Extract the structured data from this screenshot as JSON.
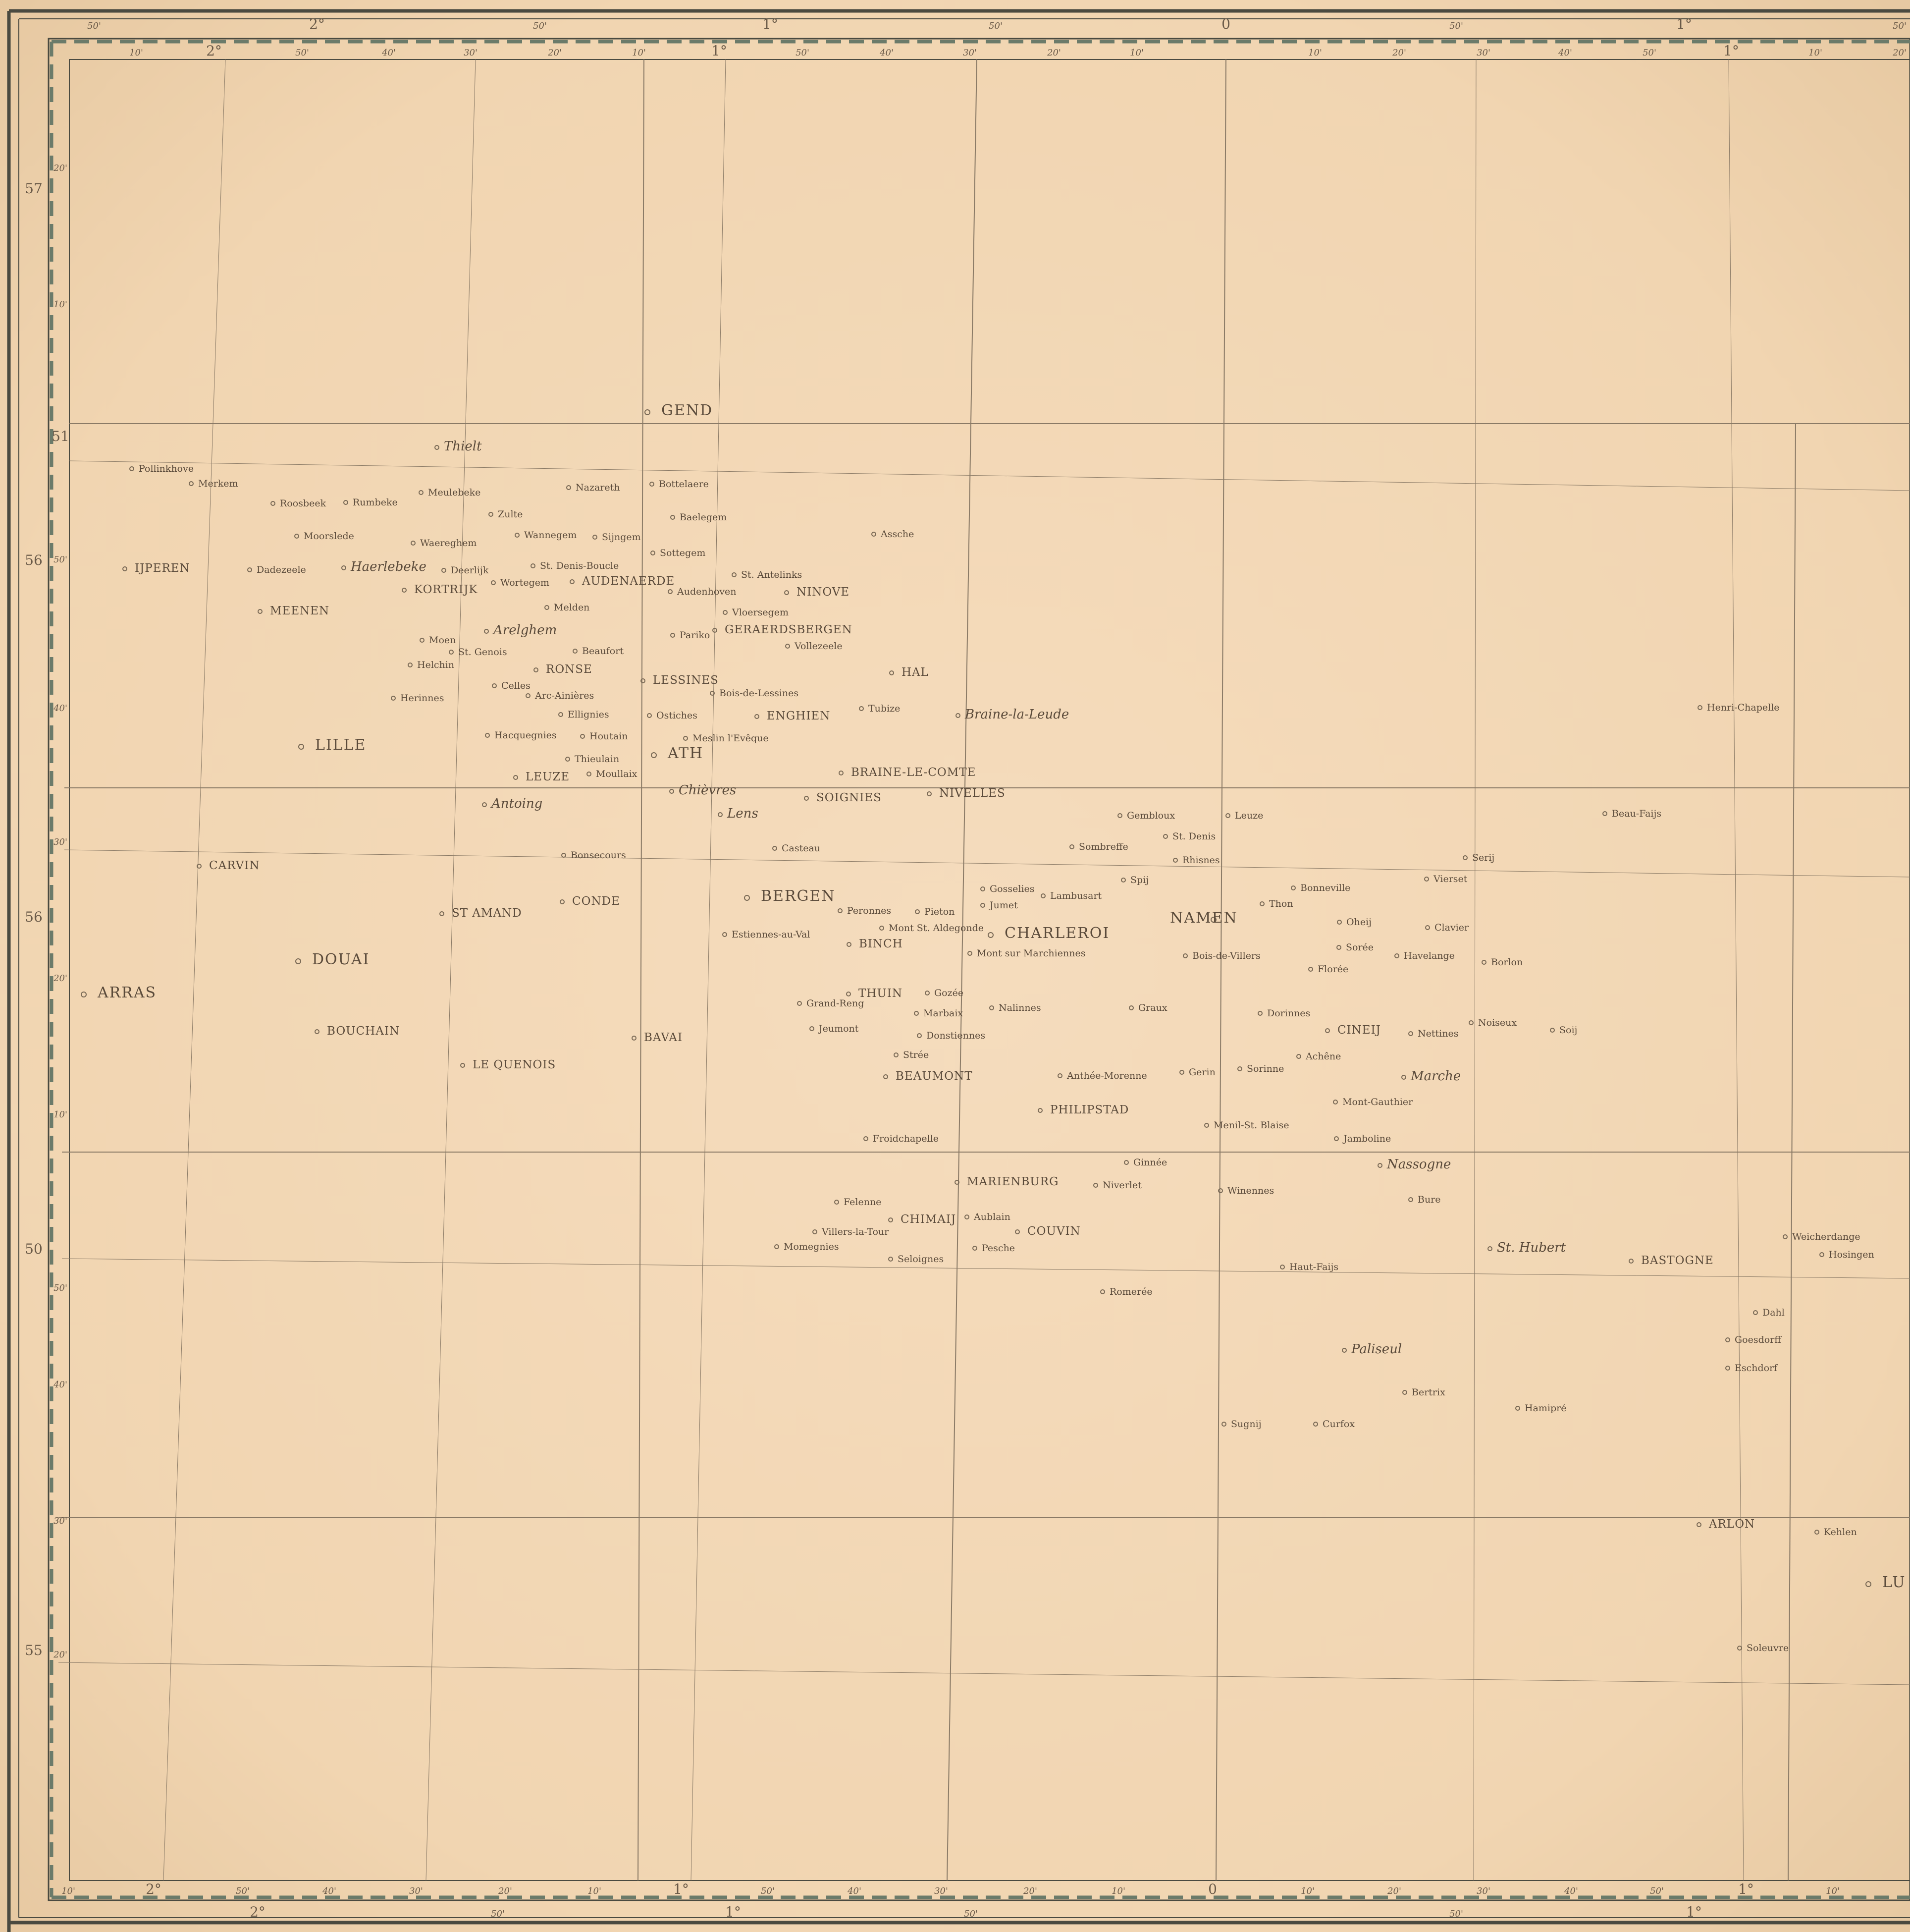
{
  "map": {
    "top_outer_ticks": [
      "50'",
      "2°",
      "50'",
      "1°",
      "50'",
      "0",
      "50'",
      "1°",
      "50'"
    ],
    "top_inner_ticks": [
      "10'",
      "2°",
      "50'",
      "40'",
      "30'",
      "20'",
      "10'",
      "1°",
      "50'",
      "40'",
      "30'",
      "20'",
      "10'",
      "10'",
      "20'",
      "30'",
      "40'",
      "50'",
      "1°",
      "10'",
      "20'"
    ],
    "bottom_inner_ticks": [
      "10'",
      "2°",
      "50'",
      "40'",
      "30'",
      "20'",
      "10'",
      "1°",
      "50'",
      "40'",
      "30'",
      "20'",
      "10'",
      "0",
      "10'",
      "20'",
      "30'",
      "40'",
      "50'",
      "1°",
      "10'"
    ],
    "bottom_outer_ticks": [
      "2°",
      "50'",
      "1°",
      "50'",
      "50'",
      "1°"
    ],
    "left_outer_ticks": [
      "57",
      "56",
      "56",
      "50",
      "55"
    ],
    "left_inner_ticks": [
      "20'",
      "10'",
      "51",
      "50'",
      "40'",
      "30'",
      "20'",
      "10'",
      "50'",
      "40'",
      "30'",
      "20'"
    ],
    "places": [
      {
        "name": "GEND",
        "style": "lg"
      },
      {
        "name": "Thielt",
        "style": "it"
      },
      {
        "name": "Pollinkhove",
        "style": "sm"
      },
      {
        "name": "Merkem",
        "style": "sm"
      },
      {
        "name": "Roosbeek",
        "style": "sm"
      },
      {
        "name": "Rumbeke",
        "style": "sm"
      },
      {
        "name": "Meulebeke",
        "style": "sm"
      },
      {
        "name": "Nazareth",
        "style": "sm"
      },
      {
        "name": "Bottelaere",
        "style": "sm"
      },
      {
        "name": "Zulte",
        "style": "sm"
      },
      {
        "name": "Baelegem",
        "style": "sm"
      },
      {
        "name": "Moorslede",
        "style": "sm"
      },
      {
        "name": "Waereghem",
        "style": "sm"
      },
      {
        "name": "Wannegem",
        "style": "sm"
      },
      {
        "name": "Sijngem",
        "style": "sm"
      },
      {
        "name": "Assche",
        "style": "sm"
      },
      {
        "name": "Sottegem",
        "style": "sm"
      },
      {
        "name": "IJPEREN",
        "style": "md"
      },
      {
        "name": "Dadezeele",
        "style": "sm"
      },
      {
        "name": "Haerlebeke",
        "style": "it"
      },
      {
        "name": "Deerlijk",
        "style": "sm"
      },
      {
        "name": "St. Denis-Boucle",
        "style": "sm"
      },
      {
        "name": "St. Antelinks",
        "style": "sm"
      },
      {
        "name": "KORTRIJK",
        "style": "md"
      },
      {
        "name": "Wortegem",
        "style": "sm"
      },
      {
        "name": "AUDENAERDE",
        "style": "md"
      },
      {
        "name": "Audenhoven",
        "style": "sm"
      },
      {
        "name": "NINOVE",
        "style": "md"
      },
      {
        "name": "MEENEN",
        "style": "md"
      },
      {
        "name": "Melden",
        "style": "sm"
      },
      {
        "name": "Vloersegem",
        "style": "sm"
      },
      {
        "name": "Arelghem",
        "style": "it"
      },
      {
        "name": "Pariko",
        "style": "sm"
      },
      {
        "name": "GERAERDSBERGEN",
        "style": "md"
      },
      {
        "name": "Moen",
        "style": "sm"
      },
      {
        "name": "St. Genois",
        "style": "sm"
      },
      {
        "name": "Beaufort",
        "style": "sm"
      },
      {
        "name": "Vollezeele",
        "style": "sm"
      },
      {
        "name": "Helchin",
        "style": "sm"
      },
      {
        "name": "RONSE",
        "style": "md"
      },
      {
        "name": "HAL",
        "style": "md"
      },
      {
        "name": "LESSINES",
        "style": "md"
      },
      {
        "name": "Celles",
        "style": "sm"
      },
      {
        "name": "Herinnes",
        "style": "sm"
      },
      {
        "name": "Arc-Ainières",
        "style": "sm"
      },
      {
        "name": "Bois-de-Lessines",
        "style": "sm"
      },
      {
        "name": "Tubize",
        "style": "sm"
      },
      {
        "name": "Braine-la-Leude",
        "style": "it"
      },
      {
        "name": "Henri-Chapelle",
        "style": "sm"
      },
      {
        "name": "Ellignies",
        "style": "sm"
      },
      {
        "name": "Ostiches",
        "style": "sm"
      },
      {
        "name": "ENGHIEN",
        "style": "md"
      },
      {
        "name": "LILLE",
        "style": "lg"
      },
      {
        "name": "Hacquegnies",
        "style": "sm"
      },
      {
        "name": "Houtain",
        "style": "sm"
      },
      {
        "name": "Meslin l'Evêque",
        "style": "sm"
      },
      {
        "name": "ATH",
        "style": "lg"
      },
      {
        "name": "Thieulain",
        "style": "sm"
      },
      {
        "name": "BRAINE-LE-COMTE",
        "style": "md"
      },
      {
        "name": "LEUZE",
        "style": "md"
      },
      {
        "name": "Moullaix",
        "style": "sm"
      },
      {
        "name": "Chièvres",
        "style": "it"
      },
      {
        "name": "SOIGNIES",
        "style": "md"
      },
      {
        "name": "NIVELLES",
        "style": "md"
      },
      {
        "name": "Antoing",
        "style": "it"
      },
      {
        "name": "Lens",
        "style": "it"
      },
      {
        "name": "Gembloux",
        "style": "sm"
      },
      {
        "name": "Leuze",
        "style": "sm"
      },
      {
        "name": "Beau-Faijs",
        "style": "sm"
      },
      {
        "name": "St. Denis",
        "style": "sm"
      },
      {
        "name": "Casteau",
        "style": "sm"
      },
      {
        "name": "Sombreffe",
        "style": "sm"
      },
      {
        "name": "Bonsecours",
        "style": "sm"
      },
      {
        "name": "Rhisnes",
        "style": "sm"
      },
      {
        "name": "Serij",
        "style": "sm"
      },
      {
        "name": "CARVIN",
        "style": "md"
      },
      {
        "name": "Spij",
        "style": "sm"
      },
      {
        "name": "Vierset",
        "style": "sm"
      },
      {
        "name": "Gosselies",
        "style": "sm"
      },
      {
        "name": "Lambusart",
        "style": "sm"
      },
      {
        "name": "Bonneville",
        "style": "sm"
      },
      {
        "name": "BERGEN",
        "style": "lg"
      },
      {
        "name": "CONDE",
        "style": "md"
      },
      {
        "name": "Jumet",
        "style": "sm"
      },
      {
        "name": "Thon",
        "style": "sm"
      },
      {
        "name": "ST AMAND",
        "style": "md"
      },
      {
        "name": "Peronnes",
        "style": "sm"
      },
      {
        "name": "Pieton",
        "style": "sm"
      },
      {
        "name": "NAMEN",
        "style": "lg"
      },
      {
        "name": "Oheij",
        "style": "sm"
      },
      {
        "name": "Mont St. Aldegonde",
        "style": "sm"
      },
      {
        "name": "Clavier",
        "style": "sm"
      },
      {
        "name": "Estiennes-au-Val",
        "style": "sm"
      },
      {
        "name": "CHARLEROI",
        "style": "lg"
      },
      {
        "name": "BINCH",
        "style": "md"
      },
      {
        "name": "Sorée",
        "style": "sm"
      },
      {
        "name": "Mont sur Marchiennes",
        "style": "sm"
      },
      {
        "name": "Bois-de-Villers",
        "style": "sm"
      },
      {
        "name": "Havelange",
        "style": "sm"
      },
      {
        "name": "DOUAI",
        "style": "lg"
      },
      {
        "name": "Borlon",
        "style": "sm"
      },
      {
        "name": "Florée",
        "style": "sm"
      },
      {
        "name": "ARRAS",
        "style": "lg"
      },
      {
        "name": "THUIN",
        "style": "md"
      },
      {
        "name": "Gozée",
        "style": "sm"
      },
      {
        "name": "Grand-Reng",
        "style": "sm"
      },
      {
        "name": "Nalinnes",
        "style": "sm"
      },
      {
        "name": "Graux",
        "style": "sm"
      },
      {
        "name": "Marbaix",
        "style": "sm"
      },
      {
        "name": "Dorinnes",
        "style": "sm"
      },
      {
        "name": "Noiseux",
        "style": "sm"
      },
      {
        "name": "BOUCHAIN",
        "style": "md"
      },
      {
        "name": "Jeumont",
        "style": "sm"
      },
      {
        "name": "CINEIJ",
        "style": "md"
      },
      {
        "name": "Nettines",
        "style": "sm"
      },
      {
        "name": "Soij",
        "style": "sm"
      },
      {
        "name": "Donstiennes",
        "style": "sm"
      },
      {
        "name": "BAVAI",
        "style": "md"
      },
      {
        "name": "Strée",
        "style": "sm"
      },
      {
        "name": "Achêne",
        "style": "sm"
      },
      {
        "name": "LE QUENOIS",
        "style": "md"
      },
      {
        "name": "Sorinne",
        "style": "sm"
      },
      {
        "name": "Gerin",
        "style": "sm"
      },
      {
        "name": "BEAUMONT",
        "style": "md"
      },
      {
        "name": "Anthée-Morenne",
        "style": "sm"
      },
      {
        "name": "Marche",
        "style": "it"
      },
      {
        "name": "Mont-Gauthier",
        "style": "sm"
      },
      {
        "name": "PHILIPSTAD",
        "style": "md"
      },
      {
        "name": "Menil-St. Blaise",
        "style": "sm"
      },
      {
        "name": "Froidchapelle",
        "style": "sm"
      },
      {
        "name": "Jamboline",
        "style": "sm"
      },
      {
        "name": "Ginnée",
        "style": "sm"
      },
      {
        "name": "Nassogne",
        "style": "it"
      },
      {
        "name": "MARIENBURG",
        "style": "md"
      },
      {
        "name": "Niverlet",
        "style": "sm"
      },
      {
        "name": "Winennes",
        "style": "sm"
      },
      {
        "name": "Felenne",
        "style": "sm"
      },
      {
        "name": "Bure",
        "style": "sm"
      },
      {
        "name": "CHIMAIJ",
        "style": "md"
      },
      {
        "name": "Aublain",
        "style": "sm"
      },
      {
        "name": "Villers-la-Tour",
        "style": "sm"
      },
      {
        "name": "COUVIN",
        "style": "md"
      },
      {
        "name": "Weicherdange",
        "style": "sm"
      },
      {
        "name": "Momegnies",
        "style": "sm"
      },
      {
        "name": "Pesche",
        "style": "sm"
      },
      {
        "name": "St. Hubert",
        "style": "it"
      },
      {
        "name": "Hosingen",
        "style": "sm"
      },
      {
        "name": "Seloignes",
        "style": "sm"
      },
      {
        "name": "BASTOGNE",
        "style": "md"
      },
      {
        "name": "Haut-Faijs",
        "style": "sm"
      },
      {
        "name": "Romerée",
        "style": "sm"
      },
      {
        "name": "Dahl",
        "style": "sm"
      },
      {
        "name": "Goesdorff",
        "style": "sm"
      },
      {
        "name": "Paliseul",
        "style": "it"
      },
      {
        "name": "Eschdorf",
        "style": "sm"
      },
      {
        "name": "Bertrix",
        "style": "sm"
      },
      {
        "name": "Hamipré",
        "style": "sm"
      },
      {
        "name": "Sugnij",
        "style": "sm"
      },
      {
        "name": "Curfox",
        "style": "sm"
      },
      {
        "name": "ARLON",
        "style": "md"
      },
      {
        "name": "Kehlen",
        "style": "sm"
      },
      {
        "name": "LU",
        "style": "lg"
      },
      {
        "name": "Soleuvre",
        "style": "sm"
      }
    ]
  }
}
